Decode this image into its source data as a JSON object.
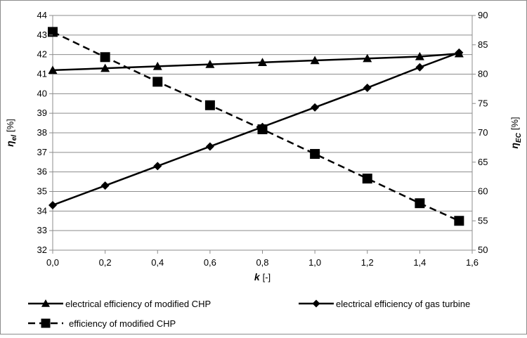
{
  "chart_data": {
    "type": "line",
    "title": "",
    "xlabel": {
      "symbol": "k",
      "unit": "[-]"
    },
    "ylabel_left": {
      "symbol": "η",
      "sub": "el",
      "unit": "[%]"
    },
    "ylabel_right": {
      "symbol": "η",
      "sub": "EC",
      "unit": "[%]"
    },
    "xlim": [
      0,
      1.6
    ],
    "ylim_left": [
      32,
      44
    ],
    "ylim_right": [
      50,
      90
    ],
    "xticks": [
      "0,0",
      "0,2",
      "0,4",
      "0,6",
      "0,8",
      "1,0",
      "1,2",
      "1,4",
      "1,6"
    ],
    "yticks_left": [
      "32",
      "33",
      "34",
      "35",
      "36",
      "37",
      "38",
      "39",
      "40",
      "41",
      "42",
      "43",
      "44"
    ],
    "yticks_right": [
      "50",
      "55",
      "60",
      "65",
      "70",
      "75",
      "80",
      "85",
      "90"
    ],
    "grid": true,
    "legend_position": "bottom",
    "series": [
      {
        "name": "electrical efficiency of modified CHP",
        "axis": "left",
        "marker": "triangle",
        "dash": "solid",
        "color": "#000000",
        "x": [
          0,
          0.2,
          0.4,
          0.6,
          0.8,
          1.0,
          1.2,
          1.4,
          1.55
        ],
        "y": [
          41.2,
          41.3,
          41.4,
          41.5,
          41.6,
          41.7,
          41.8,
          41.9,
          42.05
        ]
      },
      {
        "name": "electrical efficiency of gas turbine",
        "axis": "left",
        "marker": "diamond",
        "dash": "solid",
        "color": "#000000",
        "x": [
          0,
          0.2,
          0.4,
          0.6,
          0.8,
          1.0,
          1.2,
          1.4,
          1.55
        ],
        "y": [
          34.3,
          35.3,
          36.3,
          37.3,
          38.3,
          39.3,
          40.3,
          41.35,
          42.1
        ]
      },
      {
        "name": "efficiency of modified CHP",
        "axis": "right",
        "marker": "square",
        "dash": "dashed",
        "color": "#000000",
        "x": [
          0,
          0.2,
          0.4,
          0.6,
          0.8,
          1.0,
          1.2,
          1.4,
          1.55
        ],
        "y": [
          87.2,
          82.9,
          78.7,
          74.7,
          70.6,
          66.4,
          62.2,
          58.0,
          55.0
        ]
      }
    ]
  }
}
